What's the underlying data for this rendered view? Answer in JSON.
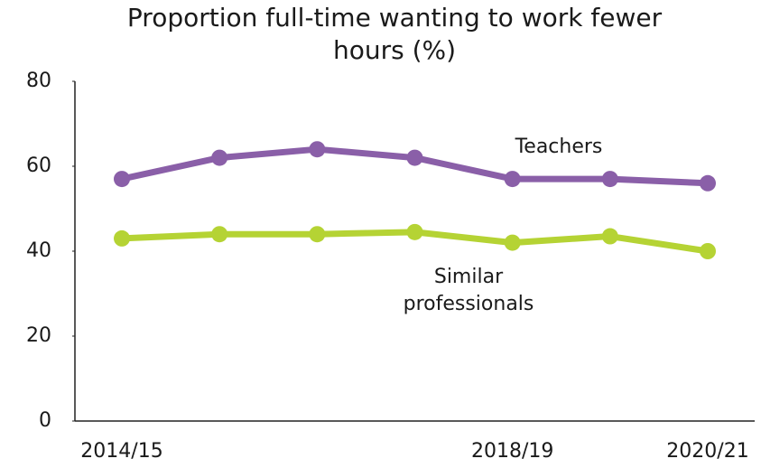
{
  "chart_data": {
    "type": "line",
    "title": "Proportion full-time wanting to work fewer hours (%)",
    "categories": [
      "2014/15",
      null,
      null,
      null,
      "2018/19",
      null,
      "2020/21"
    ],
    "series": [
      {
        "name": "Teachers",
        "color": "#8a5fa8",
        "values": [
          57,
          62,
          64,
          62,
          57,
          57,
          56
        ]
      },
      {
        "name": "Similar professionals",
        "color": "#b5d334",
        "values": [
          43,
          44,
          44,
          44.5,
          42,
          43.5,
          40
        ]
      }
    ],
    "ylim": [
      0,
      80
    ],
    "yticks": [
      0,
      20,
      40,
      60,
      80
    ],
    "grid": false
  }
}
